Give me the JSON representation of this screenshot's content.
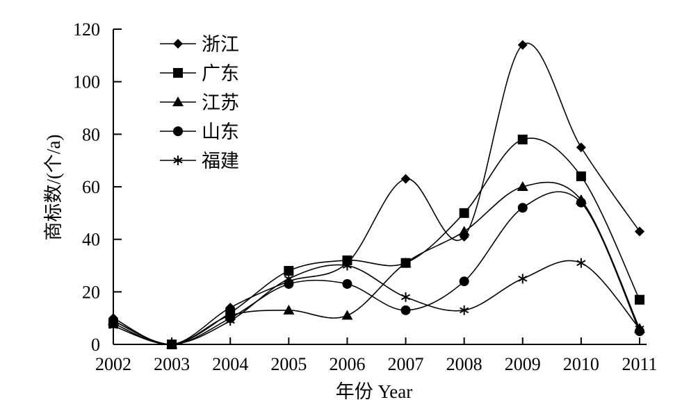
{
  "chart_data": {
    "type": "line",
    "xlabel": "年份 Year",
    "ylabel": "商标数/(个/a)",
    "x": [
      "2002",
      "2003",
      "2004",
      "2005",
      "2006",
      "2007",
      "2008",
      "2009",
      "2010",
      "2011"
    ],
    "y_ticks": [
      "0",
      "20",
      "40",
      "60",
      "80",
      "100",
      "120"
    ],
    "ylim": [
      0,
      120
    ],
    "grid": false,
    "legend_position": "top-left",
    "series": [
      {
        "name": "浙江",
        "marker": "diamond",
        "values": [
          10,
          0,
          14,
          24,
          31,
          63,
          41,
          114,
          75,
          43
        ]
      },
      {
        "name": "广东",
        "marker": "square",
        "values": [
          8,
          0,
          12,
          28,
          32,
          31,
          50,
          78,
          64,
          17
        ]
      },
      {
        "name": "江苏",
        "marker": "triangle",
        "values": [
          9,
          0,
          11,
          13,
          11,
          31,
          43,
          60,
          55,
          6
        ]
      },
      {
        "name": "山东",
        "marker": "circle",
        "values": [
          9,
          0,
          10,
          23,
          23,
          13,
          24,
          52,
          54,
          5
        ]
      },
      {
        "name": "福建",
        "marker": "asterisk",
        "values": [
          7,
          0,
          9,
          25,
          30,
          18,
          13,
          25,
          31,
          6
        ]
      }
    ]
  }
}
